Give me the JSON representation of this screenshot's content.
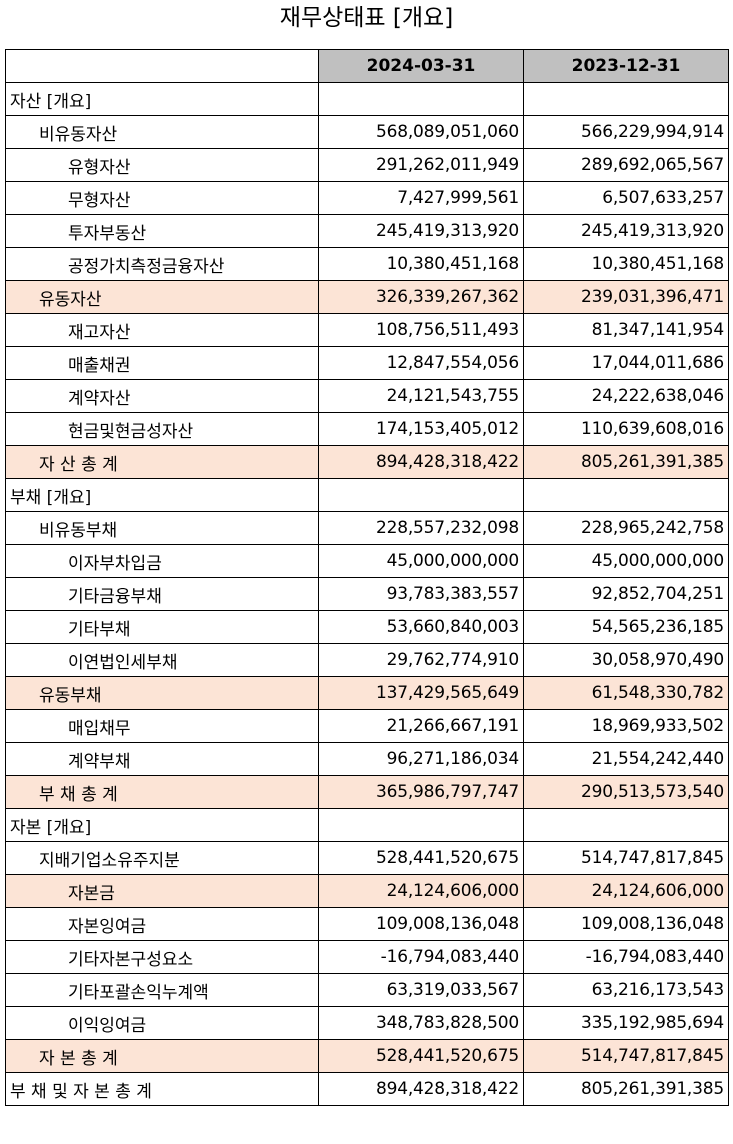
{
  "title": "재무상태표 [개요]",
  "columns": [
    "2024-03-31",
    "2023-12-31"
  ],
  "rows": [
    {
      "label": "자산 [개요]",
      "level": 0,
      "highlight": false,
      "values": [
        "",
        ""
      ]
    },
    {
      "label": "비유동자산",
      "level": 1,
      "highlight": false,
      "values": [
        "568,089,051,060",
        "566,229,994,914"
      ]
    },
    {
      "label": "유형자산",
      "level": 2,
      "highlight": false,
      "values": [
        "291,262,011,949",
        "289,692,065,567"
      ]
    },
    {
      "label": "무형자산",
      "level": 2,
      "highlight": false,
      "values": [
        "7,427,999,561",
        "6,507,633,257"
      ]
    },
    {
      "label": "투자부동산",
      "level": 2,
      "highlight": false,
      "values": [
        "245,419,313,920",
        "245,419,313,920"
      ]
    },
    {
      "label": "공정가치측정금융자산",
      "level": 2,
      "highlight": false,
      "values": [
        "10,380,451,168",
        "10,380,451,168"
      ]
    },
    {
      "label": "유동자산",
      "level": 1,
      "highlight": true,
      "values": [
        "326,339,267,362",
        "239,031,396,471"
      ]
    },
    {
      "label": "재고자산",
      "level": 2,
      "highlight": false,
      "values": [
        "108,756,511,493",
        "81,347,141,954"
      ]
    },
    {
      "label": "매출채권",
      "level": 2,
      "highlight": false,
      "values": [
        "12,847,554,056",
        "17,044,011,686"
      ]
    },
    {
      "label": "계약자산",
      "level": 2,
      "highlight": false,
      "values": [
        "24,121,543,755",
        "24,222,638,046"
      ]
    },
    {
      "label": "현금및현금성자산",
      "level": 2,
      "highlight": false,
      "values": [
        "174,153,405,012",
        "110,639,608,016"
      ]
    },
    {
      "label": "자 산 총 계",
      "level": 1,
      "highlight": true,
      "values": [
        "894,428,318,422",
        "805,261,391,385"
      ]
    },
    {
      "label": "부채 [개요]",
      "level": 0,
      "highlight": false,
      "values": [
        "",
        ""
      ]
    },
    {
      "label": "비유동부채",
      "level": 1,
      "highlight": false,
      "values": [
        "228,557,232,098",
        "228,965,242,758"
      ]
    },
    {
      "label": "이자부차입금",
      "level": 2,
      "highlight": false,
      "values": [
        "45,000,000,000",
        "45,000,000,000"
      ]
    },
    {
      "label": "기타금융부채",
      "level": 2,
      "highlight": false,
      "values": [
        "93,783,383,557",
        "92,852,704,251"
      ]
    },
    {
      "label": "기타부채",
      "level": 2,
      "highlight": false,
      "values": [
        "53,660,840,003",
        "54,565,236,185"
      ]
    },
    {
      "label": "이연법인세부채",
      "level": 2,
      "highlight": false,
      "values": [
        "29,762,774,910",
        "30,058,970,490"
      ]
    },
    {
      "label": "유동부채",
      "level": 1,
      "highlight": true,
      "values": [
        "137,429,565,649",
        "61,548,330,782"
      ]
    },
    {
      "label": "매입채무",
      "level": 2,
      "highlight": false,
      "values": [
        "21,266,667,191",
        "18,969,933,502"
      ]
    },
    {
      "label": "계약부채",
      "level": 2,
      "highlight": false,
      "values": [
        "96,271,186,034",
        "21,554,242,440"
      ]
    },
    {
      "label": "부 채 총 계",
      "level": 1,
      "highlight": true,
      "values": [
        "365,986,797,747",
        "290,513,573,540"
      ]
    },
    {
      "label": "자본 [개요]",
      "level": 0,
      "highlight": false,
      "values": [
        "",
        ""
      ]
    },
    {
      "label": "지배기업소유주지분",
      "level": 1,
      "highlight": false,
      "values": [
        "528,441,520,675",
        "514,747,817,845"
      ]
    },
    {
      "label": "자본금",
      "level": 2,
      "highlight": true,
      "values": [
        "24,124,606,000",
        "24,124,606,000"
      ]
    },
    {
      "label": "자본잉여금",
      "level": 2,
      "highlight": false,
      "values": [
        "109,008,136,048",
        "109,008,136,048"
      ]
    },
    {
      "label": "기타자본구성요소",
      "level": 2,
      "highlight": false,
      "values": [
        "-16,794,083,440",
        "-16,794,083,440"
      ]
    },
    {
      "label": "기타포괄손익누계액",
      "level": 2,
      "highlight": false,
      "values": [
        "63,319,033,567",
        "63,216,173,543"
      ]
    },
    {
      "label": "이익잉여금",
      "level": 2,
      "highlight": false,
      "values": [
        "348,783,828,500",
        "335,192,985,694"
      ]
    },
    {
      "label": "자 본 총 계",
      "level": 1,
      "highlight": true,
      "values": [
        "528,441,520,675",
        "514,747,817,845"
      ]
    },
    {
      "label": "부 채 및 자 본 총 계",
      "level": 0,
      "highlight": false,
      "values": [
        "894,428,318,422",
        "805,261,391,385"
      ]
    }
  ],
  "colors": {
    "header_bg": "#c0c0c0",
    "highlight_bg": "#fce4d6",
    "border": "#000000"
  }
}
